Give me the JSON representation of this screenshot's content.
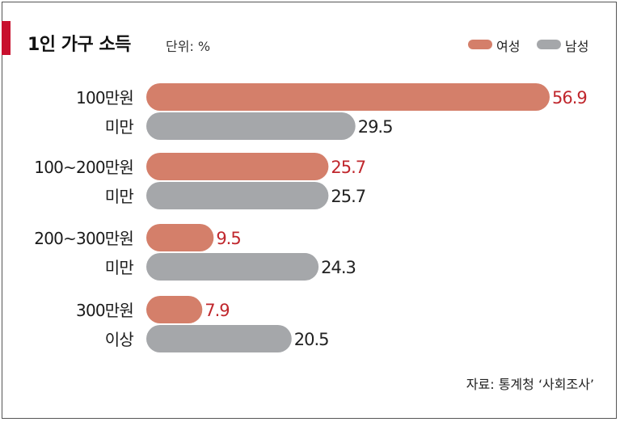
{
  "title": "1인 가구 소득",
  "unit": "단위: %",
  "source": "자료: 통계청 ‘사회조사’",
  "legend": [
    {
      "label": "여성",
      "color": "#d47f6a"
    },
    {
      "label": "남성",
      "color": "#a5a7aa"
    }
  ],
  "colors": {
    "female_value_text": "#c0272d",
    "male_value_text": "#222222"
  },
  "chart_data": {
    "type": "bar",
    "orientation": "horizontal",
    "categories": [
      [
        "100만원",
        "미만"
      ],
      [
        "100~200만원",
        "미만"
      ],
      [
        "200~300만원",
        "미만"
      ],
      [
        "300만원",
        "이상"
      ]
    ],
    "series": [
      {
        "name": "여성",
        "values": [
          56.9,
          25.7,
          9.5,
          7.9
        ],
        "labels": [
          "56.9",
          "25.7",
          "9.5",
          "7.9"
        ]
      },
      {
        "name": "남성",
        "values": [
          29.5,
          25.7,
          24.3,
          20.5
        ],
        "labels": [
          "29.5",
          "25.7",
          "24.3",
          "20.5"
        ]
      }
    ],
    "xlim": [
      0,
      56.9
    ],
    "grid": false,
    "legend_position": "top-right"
  }
}
